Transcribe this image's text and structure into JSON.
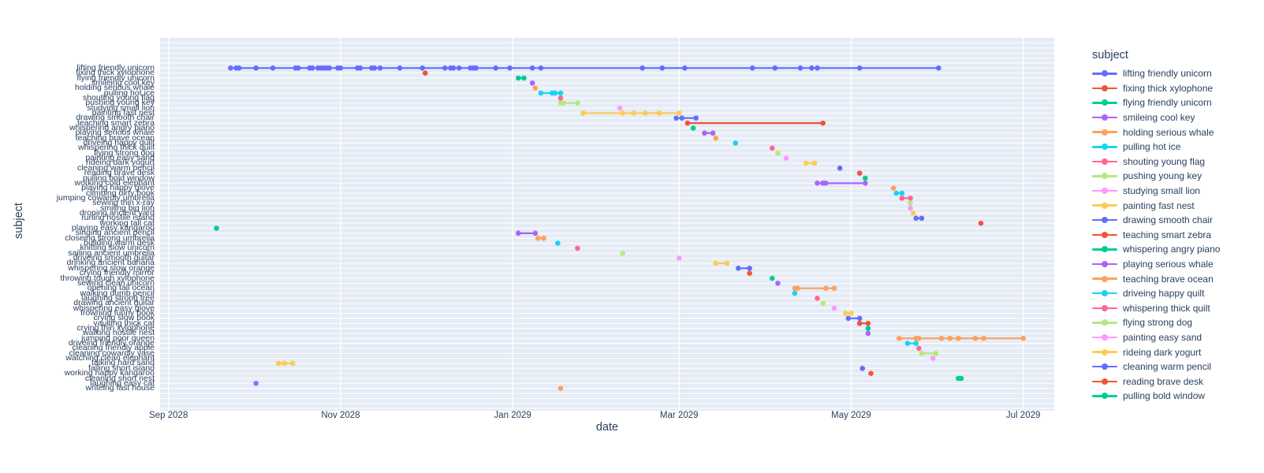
{
  "colors": {
    "plot_bg": "#E5ECF6",
    "grid": "#FFFFFF",
    "text": "#2A3F5F",
    "page_bg": "#FFFFFF"
  },
  "palette": [
    "#636EFA",
    "#EF553B",
    "#00CC96",
    "#AB63FA",
    "#FFA15A",
    "#19D3F3",
    "#FF6692",
    "#B6E880",
    "#FF97FF",
    "#FECB52"
  ],
  "legend": {
    "title": "subject",
    "visible_count": 23
  },
  "chart_data": {
    "type": "scatter",
    "mode": "lines+markers",
    "title": "",
    "xlabel": "date",
    "ylabel": "subject",
    "legend_position": "right",
    "grid": true,
    "x_ticks": [
      "Sep 2028",
      "Nov 2028",
      "Jan 2029",
      "Mar 2029",
      "May 2029",
      "Jul 2029"
    ],
    "x_tick_dates": [
      "2028-09-01",
      "2028-11-01",
      "2029-01-01",
      "2029-03-01",
      "2029-05-01",
      "2029-07-01"
    ],
    "x_range": [
      "2028-08-29",
      "2029-07-12"
    ],
    "series": [
      {
        "name": "lifting friendly unicorn",
        "dates": [
          "2028-09-23",
          "2028-09-25",
          "2028-09-26",
          "2028-10-02",
          "2028-10-08",
          "2028-10-16",
          "2028-10-17",
          "2028-10-21",
          "2028-10-22",
          "2028-10-24",
          "2028-10-25",
          "2028-10-26",
          "2028-10-27",
          "2028-10-28",
          "2028-10-31",
          "2028-11-01",
          "2028-11-07",
          "2028-11-08",
          "2028-11-12",
          "2028-11-13",
          "2028-11-15",
          "2028-11-22",
          "2028-11-30",
          "2028-12-08",
          "2028-12-10",
          "2028-12-11",
          "2028-12-13",
          "2028-12-17",
          "2028-12-18",
          "2028-12-19",
          "2028-12-26",
          "2028-12-31",
          "2029-01-08",
          "2029-01-11",
          "2029-02-16",
          "2029-02-23",
          "2029-03-03",
          "2029-03-27",
          "2029-04-04",
          "2029-04-13",
          "2029-04-17",
          "2029-04-19",
          "2029-05-04",
          "2029-06-01"
        ]
      },
      {
        "name": "fixing thick xylophone",
        "dates": [
          "2028-12-01"
        ]
      },
      {
        "name": "flying friendly unicorn",
        "dates": [
          "2029-01-03",
          "2029-01-05"
        ]
      },
      {
        "name": "smileing cool key",
        "dates": [
          "2029-01-08"
        ]
      },
      {
        "name": "holding serious whale",
        "dates": [
          "2029-01-09"
        ]
      },
      {
        "name": "pulling hot ice",
        "dates": [
          "2029-01-11",
          "2029-01-15",
          "2029-01-16",
          "2029-01-18"
        ]
      },
      {
        "name": "shouting young flag",
        "dates": [
          "2029-01-18"
        ]
      },
      {
        "name": "pushing young key",
        "dates": [
          "2029-01-18",
          "2029-01-19",
          "2029-01-24"
        ]
      },
      {
        "name": "studying small lion",
        "dates": [
          "2029-02-08"
        ]
      },
      {
        "name": "painting fast nest",
        "dates": [
          "2029-01-26",
          "2029-02-09",
          "2029-02-13",
          "2029-02-17",
          "2029-02-22",
          "2029-03-01"
        ]
      },
      {
        "name": "drawing smooth chair",
        "dates": [
          "2029-02-28",
          "2029-03-02",
          "2029-03-07"
        ]
      },
      {
        "name": "teaching smart zebra",
        "dates": [
          "2029-03-04",
          "2029-04-21"
        ]
      },
      {
        "name": "whispering angry piano",
        "dates": [
          "2029-03-06"
        ]
      },
      {
        "name": "playing serious whale",
        "dates": [
          "2029-03-10",
          "2029-03-13"
        ]
      },
      {
        "name": "teaching brave ocean",
        "dates": [
          "2029-03-14"
        ]
      },
      {
        "name": "driveing happy quilt",
        "dates": [
          "2029-03-21"
        ]
      },
      {
        "name": "whispering thick quilt",
        "dates": [
          "2029-04-03"
        ]
      },
      {
        "name": "flying strong dog",
        "dates": [
          "2029-04-05"
        ]
      },
      {
        "name": "painting easy sand",
        "dates": [
          "2029-04-08"
        ]
      },
      {
        "name": "rideing dark yogurt",
        "dates": [
          "2029-04-15",
          "2029-04-18"
        ]
      },
      {
        "name": "cleaning warm pencil",
        "dates": [
          "2029-04-27"
        ]
      },
      {
        "name": "reading brave desk",
        "dates": [
          "2029-05-04"
        ]
      },
      {
        "name": "pulling bold window",
        "dates": [
          "2029-05-06"
        ]
      },
      {
        "name": "working cold elephant",
        "dates": [
          "2029-04-19",
          "2029-04-21",
          "2029-04-22",
          "2029-05-06"
        ]
      },
      {
        "name": "playing happy glove",
        "dates": [
          "2029-05-16"
        ]
      },
      {
        "name": "climbing dirty book",
        "dates": [
          "2029-05-17",
          "2029-05-19"
        ]
      },
      {
        "name": "jumping cowardly umbrella",
        "dates": [
          "2029-05-19",
          "2029-05-22"
        ]
      },
      {
        "name": "sewing thin x-ray",
        "dates": [
          "2029-05-22"
        ]
      },
      {
        "name": "smiling big lion",
        "dates": [
          "2029-05-22"
        ]
      },
      {
        "name": "droping ancient yard",
        "dates": [
          "2029-05-23"
        ]
      },
      {
        "name": "runing hostile island",
        "dates": [
          "2029-05-24",
          "2029-05-26"
        ]
      },
      {
        "name": "working tall cat",
        "dates": [
          "2029-06-16"
        ]
      },
      {
        "name": "playing easy kangaroo",
        "dates": [
          "2028-09-18"
        ]
      },
      {
        "name": "singing ancient pencil",
        "dates": [
          "2029-01-03",
          "2029-01-09"
        ]
      },
      {
        "name": "closeing strong umbrella",
        "dates": [
          "2029-01-10",
          "2029-01-12"
        ]
      },
      {
        "name": "building warm desk",
        "dates": [
          "2029-01-17"
        ]
      },
      {
        "name": "knitting slow unicorn",
        "dates": [
          "2029-01-24"
        ]
      },
      {
        "name": "sailing ancient umbrella",
        "dates": [
          "2029-02-09"
        ]
      },
      {
        "name": "driveing smooth guitar",
        "dates": [
          "2029-03-01"
        ]
      },
      {
        "name": "drinking ancient banana",
        "dates": [
          "2029-03-14",
          "2029-03-18"
        ]
      },
      {
        "name": "whispering slow orange",
        "dates": [
          "2029-03-22",
          "2029-03-26"
        ]
      },
      {
        "name": "crying friendly mirror",
        "dates": [
          "2029-03-26"
        ]
      },
      {
        "name": "throwing tough xylophone",
        "dates": [
          "2029-04-03"
        ]
      },
      {
        "name": "sewing clean unicorn",
        "dates": [
          "2029-04-05"
        ]
      },
      {
        "name": "opening tall ocean",
        "dates": [
          "2029-04-11",
          "2029-04-12",
          "2029-04-22",
          "2029-04-25"
        ]
      },
      {
        "name": "walking dumb pencil",
        "dates": [
          "2029-04-11"
        ]
      },
      {
        "name": "laughing strong tree",
        "dates": [
          "2029-04-19"
        ]
      },
      {
        "name": "drawing ancient guitar",
        "dates": [
          "2029-04-21"
        ]
      },
      {
        "name": "whispering easy glove",
        "dates": [
          "2029-04-25"
        ]
      },
      {
        "name": "frowning funny book",
        "dates": [
          "2029-04-29",
          "2029-05-01"
        ]
      },
      {
        "name": "crying slow book",
        "dates": [
          "2029-04-30",
          "2029-05-04"
        ]
      },
      {
        "name": "vaulting thick cat",
        "dates": [
          "2029-05-04",
          "2029-05-07"
        ]
      },
      {
        "name": "crying thin xylophone",
        "dates": [
          "2029-05-07"
        ]
      },
      {
        "name": "walking hostile nest",
        "dates": [
          "2029-05-07"
        ]
      },
      {
        "name": "jumping poor queen",
        "dates": [
          "2029-05-18",
          "2029-05-24",
          "2029-05-25",
          "2029-06-02",
          "2029-06-05",
          "2029-06-08",
          "2029-06-14",
          "2029-06-17",
          "2029-07-01"
        ]
      },
      {
        "name": "driveing friendly orange",
        "dates": [
          "2029-05-21",
          "2029-05-24"
        ]
      },
      {
        "name": "cleaning friendly apple",
        "dates": [
          "2029-05-25"
        ]
      },
      {
        "name": "cleaning cowardly vase",
        "dates": [
          "2029-05-26",
          "2029-05-31"
        ]
      },
      {
        "name": "watching clean elephant",
        "dates": [
          "2029-05-30"
        ]
      },
      {
        "name": "talking hard sand",
        "dates": [
          "2028-10-10",
          "2028-10-12",
          "2028-10-15"
        ]
      },
      {
        "name": "falling short island",
        "dates": [
          "2029-05-05"
        ]
      },
      {
        "name": "working happy kangaroo",
        "dates": [
          "2029-05-08"
        ]
      },
      {
        "name": "cleaning short nest",
        "dates": [
          "2029-06-08",
          "2029-06-09"
        ]
      },
      {
        "name": "laughing easy cat",
        "dates": [
          "2028-10-02"
        ]
      },
      {
        "name": "writeing fast house",
        "dates": [
          "2029-01-18"
        ]
      }
    ]
  }
}
